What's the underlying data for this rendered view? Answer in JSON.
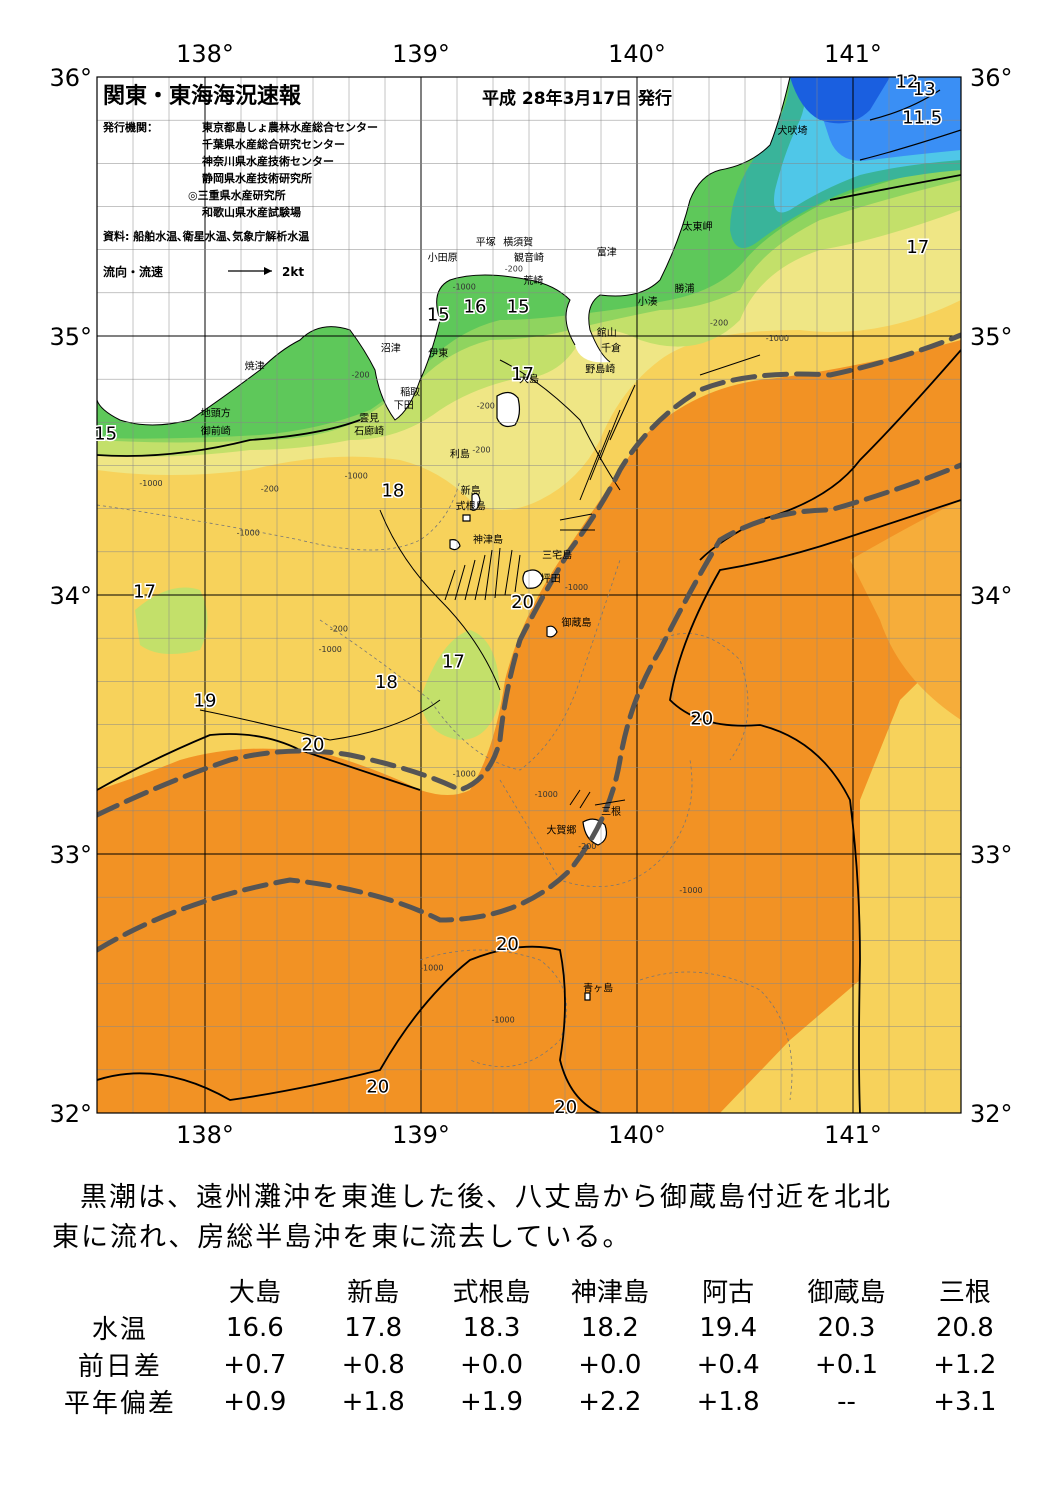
{
  "map": {
    "title": "関東・東海海況速報",
    "issue_date": "平成 28年3月17日 発行",
    "publisher_label": "発行機関：",
    "publishers": [
      "東京都島しょ農林水産総合センター",
      "千葉県水産総合研究センター",
      "神奈川県水産技術センター",
      "静岡県水産技術研究所",
      "◎三重県水産研究所",
      "和歌山県水産試験場"
    ],
    "sources": "資料: 船舶水温､衛星水温､気象庁解析水温",
    "legend_label": "流向・流速",
    "legend_scale": "2kt",
    "lon_labels": [
      "138°",
      "139°",
      "140°",
      "141°"
    ],
    "lat_labels": [
      "36°",
      "35°",
      "34°",
      "33°",
      "32°"
    ],
    "lon_range": [
      137.5,
      141.5
    ],
    "lat_range": [
      32,
      36
    ],
    "places": [
      {
        "name": "犬吠埼",
        "lon": 140.72,
        "lat": 35.78
      },
      {
        "name": "太東岬",
        "lon": 140.28,
        "lat": 35.41
      },
      {
        "name": "勝浦",
        "lon": 140.22,
        "lat": 35.17
      },
      {
        "name": "小湊",
        "lon": 140.05,
        "lat": 35.12
      },
      {
        "name": "富津",
        "lon": 139.86,
        "lat": 35.31
      },
      {
        "name": "横須賀",
        "lon": 139.45,
        "lat": 35.35
      },
      {
        "name": "観音崎",
        "lon": 139.5,
        "lat": 35.29
      },
      {
        "name": "荒崎",
        "lon": 139.52,
        "lat": 35.2
      },
      {
        "name": "平塚",
        "lon": 139.3,
        "lat": 35.35
      },
      {
        "name": "小田原",
        "lon": 139.1,
        "lat": 35.29
      },
      {
        "name": "館山",
        "lon": 139.86,
        "lat": 35.0
      },
      {
        "name": "千倉",
        "lon": 139.88,
        "lat": 34.94
      },
      {
        "name": "野島崎",
        "lon": 139.83,
        "lat": 34.86
      },
      {
        "name": "沼津",
        "lon": 138.86,
        "lat": 34.94
      },
      {
        "name": "伊東",
        "lon": 139.08,
        "lat": 34.92
      },
      {
        "name": "焼津",
        "lon": 138.23,
        "lat": 34.87
      },
      {
        "name": "稲取",
        "lon": 138.95,
        "lat": 34.77
      },
      {
        "name": "下田",
        "lon": 138.92,
        "lat": 34.72
      },
      {
        "name": "雲見",
        "lon": 138.76,
        "lat": 34.67
      },
      {
        "name": "石廊崎",
        "lon": 138.76,
        "lat": 34.62
      },
      {
        "name": "地頭方",
        "lon": 138.05,
        "lat": 34.69
      },
      {
        "name": "御前崎",
        "lon": 138.05,
        "lat": 34.62
      },
      {
        "name": "大島",
        "lon": 139.5,
        "lat": 34.82
      },
      {
        "name": "利島",
        "lon": 139.18,
        "lat": 34.53
      },
      {
        "name": "新島",
        "lon": 139.23,
        "lat": 34.39
      },
      {
        "name": "式根島",
        "lon": 139.23,
        "lat": 34.33
      },
      {
        "name": "神津島",
        "lon": 139.31,
        "lat": 34.2
      },
      {
        "name": "三宅島",
        "lon": 139.63,
        "lat": 34.14
      },
      {
        "name": "坪田",
        "lon": 139.6,
        "lat": 34.05
      },
      {
        "name": "御蔵島",
        "lon": 139.72,
        "lat": 33.88
      },
      {
        "name": "三根",
        "lon": 139.88,
        "lat": 33.15
      },
      {
        "name": "大賀郷",
        "lon": 139.65,
        "lat": 33.08
      },
      {
        "name": "青ヶ島",
        "lon": 139.82,
        "lat": 32.47
      }
    ],
    "isotherm_labels": [
      {
        "text": "12",
        "lon": 141.25,
        "lat": 35.96
      },
      {
        "text": "13",
        "lon": 141.33,
        "lat": 35.93
      },
      {
        "text": "11.5",
        "lon": 141.32,
        "lat": 35.82
      },
      {
        "text": "17",
        "lon": 141.3,
        "lat": 35.32
      },
      {
        "text": "15",
        "lon": 139.08,
        "lat": 35.06
      },
      {
        "text": "16",
        "lon": 139.25,
        "lat": 35.09
      },
      {
        "text": "15",
        "lon": 139.45,
        "lat": 35.09
      },
      {
        "text": "17",
        "lon": 139.47,
        "lat": 34.83
      },
      {
        "text": "15",
        "lon": 137.54,
        "lat": 34.6
      },
      {
        "text": "18",
        "lon": 138.87,
        "lat": 34.38
      },
      {
        "text": "17",
        "lon": 137.72,
        "lat": 33.99
      },
      {
        "text": "20",
        "lon": 139.47,
        "lat": 33.95
      },
      {
        "text": "17",
        "lon": 139.15,
        "lat": 33.72
      },
      {
        "text": "18",
        "lon": 138.84,
        "lat": 33.64
      },
      {
        "text": "19",
        "lon": 138.0,
        "lat": 33.57
      },
      {
        "text": "20",
        "lon": 138.5,
        "lat": 33.4
      },
      {
        "text": "20",
        "lon": 140.3,
        "lat": 33.5
      },
      {
        "text": "20",
        "lon": 139.4,
        "lat": 32.63
      },
      {
        "text": "20",
        "lon": 138.8,
        "lat": 32.08
      },
      {
        "text": "20",
        "lon": 139.67,
        "lat": 32.0
      }
    ],
    "depth_labels": [
      {
        "text": "-200",
        "lon": 139.43,
        "lat": 35.25
      },
      {
        "text": "-1000",
        "lon": 139.2,
        "lat": 35.18
      },
      {
        "text": "-200",
        "lon": 140.38,
        "lat": 35.04
      },
      {
        "text": "-1000",
        "lon": 140.65,
        "lat": 34.98
      },
      {
        "text": "-200",
        "lon": 138.72,
        "lat": 34.84
      },
      {
        "text": "-200",
        "lon": 139.3,
        "lat": 34.72
      },
      {
        "text": "-200",
        "lon": 139.28,
        "lat": 34.55
      },
      {
        "text": "-200",
        "lon": 138.3,
        "lat": 34.4
      },
      {
        "text": "-1000",
        "lon": 137.75,
        "lat": 34.42
      },
      {
        "text": "-1000",
        "lon": 138.7,
        "lat": 34.45
      },
      {
        "text": "-1000",
        "lon": 138.2,
        "lat": 34.23
      },
      {
        "text": "-1000",
        "lon": 139.72,
        "lat": 34.02
      },
      {
        "text": "-200",
        "lon": 138.62,
        "lat": 33.86
      },
      {
        "text": "-1000",
        "lon": 138.58,
        "lat": 33.78
      },
      {
        "text": "-1000",
        "lon": 139.2,
        "lat": 33.3
      },
      {
        "text": "-1000",
        "lon": 139.58,
        "lat": 33.22
      },
      {
        "text": "-200",
        "lon": 139.77,
        "lat": 33.02
      },
      {
        "text": "-1000",
        "lon": 140.25,
        "lat": 32.85
      },
      {
        "text": "-1000",
        "lon": 139.05,
        "lat": 32.55
      },
      {
        "text": "-1000",
        "lon": 139.38,
        "lat": 32.35
      }
    ],
    "colors": {
      "deep_blue": "#1a5fe0",
      "blue": "#3a8ff5",
      "cyan": "#4fc7e8",
      "teal": "#39b49a",
      "green": "#5ec85a",
      "light_green": "#8fd45f",
      "yellow_green": "#c3e06a",
      "pale_yellow": "#efe685",
      "yellow": "#f7d25b",
      "light_orange": "#f6ad3a",
      "orange": "#f29224",
      "kuroshio_axis": "#555555"
    }
  },
  "summary": {
    "line1": "黒潮は、遠州灘沖を東進した後、八丈島から御蔵島付近を北北",
    "line2": "東に流れ、房総半島沖を東に流去している。"
  },
  "stats": {
    "stations": [
      "大島",
      "新島",
      "式根島",
      "神津島",
      "阿古",
      "御蔵島",
      "三根"
    ],
    "rows": [
      {
        "label": "水温",
        "values": [
          "16.6",
          "17.8",
          "18.3",
          "18.2",
          "19.4",
          "20.3",
          "20.8"
        ]
      },
      {
        "label": "前日差",
        "values": [
          "+0.7",
          "+0.8",
          "+0.0",
          "+0.0",
          "+0.4",
          "+0.1",
          "+1.2"
        ]
      },
      {
        "label": "平年偏差",
        "values": [
          "+0.9",
          "+1.8",
          "+1.9",
          "+2.2",
          "+1.8",
          "--",
          "+3.1"
        ]
      }
    ]
  }
}
